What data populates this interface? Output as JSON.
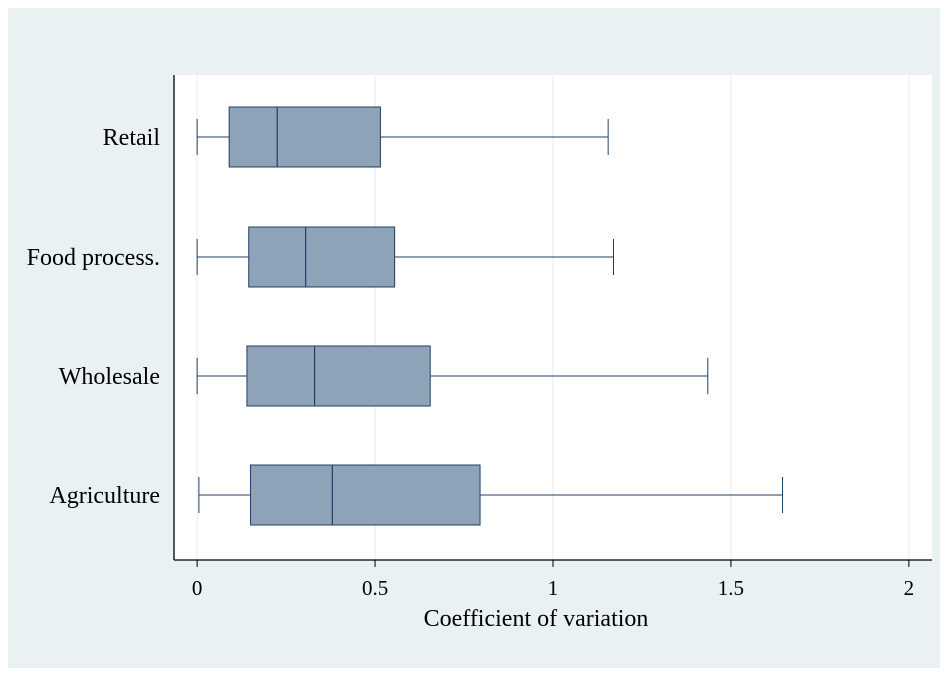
{
  "chart_data": {
    "type": "boxplot",
    "orientation": "horizontal",
    "categories": [
      "Retail",
      "Food process.",
      "Wholesale",
      "Agriculture"
    ],
    "boxes": [
      {
        "category": "Retail",
        "min": 0.0,
        "q1": 0.09,
        "median": 0.225,
        "q3": 0.515,
        "max": 1.155
      },
      {
        "category": "Food process.",
        "min": 0.0,
        "q1": 0.145,
        "median": 0.305,
        "q3": 0.555,
        "max": 1.17
      },
      {
        "category": "Wholesale",
        "min": 0.0,
        "q1": 0.14,
        "median": 0.33,
        "q3": 0.655,
        "max": 1.435
      },
      {
        "category": "Agriculture",
        "min": 0.005,
        "q1": 0.15,
        "median": 0.38,
        "q3": 0.795,
        "max": 1.645
      }
    ],
    "xlabel": "Coefficient  of variation",
    "ylabel": "",
    "title": "",
    "xlim": [
      -0.065,
      2.065
    ],
    "xticks": [
      0,
      0.5,
      1,
      1.5,
      2
    ],
    "xtick_labels": [
      "0",
      "0.5",
      "1",
      "1.5",
      "2"
    ],
    "grid": "vertical",
    "colors": {
      "background": "#eaf1f3",
      "plot_area": "#ffffff",
      "box_fill": "#8ea2b8",
      "box_stroke": "#1f3f64",
      "grid": "#e6eaee",
      "axis": "#000000"
    }
  }
}
